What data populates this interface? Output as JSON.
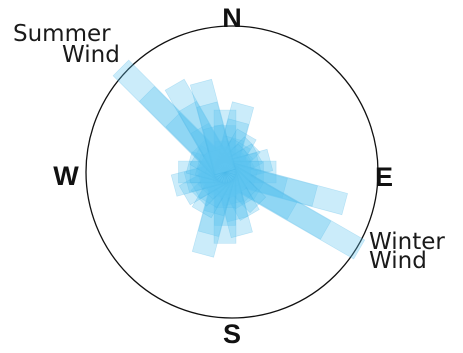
{
  "compass": {
    "north": "N",
    "south": "S",
    "east": "E",
    "west": "W"
  },
  "labels": {
    "summer_line1": "Summer",
    "summer_line2": "Wind",
    "winter_line1": "Winter",
    "winter_line2": "Wind"
  },
  "colors": {
    "petal_fill": "#5ec5f0",
    "petal_edge": "#2fa8e0",
    "circle_stroke": "#111111"
  },
  "chart_data": {
    "type": "wind-rose",
    "directions_deg": [
      0,
      15,
      30,
      45,
      60,
      75,
      90,
      105,
      120,
      135,
      150,
      165,
      180,
      195,
      210,
      225,
      240,
      255,
      270,
      285,
      300,
      315,
      330,
      345
    ],
    "relative_length": [
      0.4,
      0.45,
      0.28,
      0.25,
      0.24,
      0.3,
      0.33,
      0.8,
      1.0,
      0.3,
      0.32,
      0.42,
      0.46,
      0.55,
      0.3,
      0.24,
      0.3,
      0.34,
      0.3,
      0.24,
      0.22,
      0.95,
      0.65,
      0.6
    ],
    "prevailing": [
      {
        "label": "Summer Wind",
        "direction": "NW"
      },
      {
        "label": "Winter Wind",
        "direction": "ESE"
      }
    ]
  }
}
